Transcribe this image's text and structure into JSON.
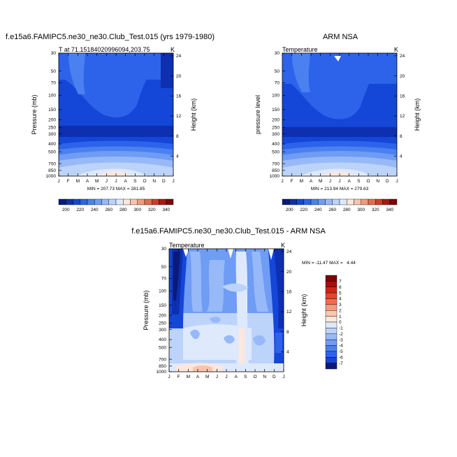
{
  "chart_data": [
    {
      "type": "heatmap",
      "title": "f.e15a6.FAMIPC5.ne30_ne30.Club_Test.015 (yrs 1979-1980)",
      "left_label": "T at 71.15184020996094,203.75",
      "right_label": "K",
      "ylabel": "Pressure (mb)",
      "ylabel_right": "Height (km)",
      "x_ticks": [
        "J",
        "F",
        "M",
        "A",
        "M",
        "J",
        "J",
        "A",
        "S",
        "O",
        "N",
        "D",
        "J"
      ],
      "y_ticks": [
        "30",
        "50",
        "70",
        "100",
        "150",
        "200",
        "250",
        "300",
        "400",
        "500",
        "700",
        "850",
        "1000"
      ],
      "y_values": [
        30,
        50,
        70,
        100,
        150,
        200,
        250,
        300,
        400,
        500,
        700,
        850,
        1000
      ],
      "height_ticks": [
        "4",
        "8",
        "12",
        "16",
        "20",
        "24"
      ],
      "height_values": [
        4,
        8,
        12,
        16,
        20,
        24
      ],
      "min_label": "MIN = 207.73",
      "max_label": "MAX = 281.85",
      "min": 207.73,
      "max": 281.85,
      "colorbar": "temp"
    },
    {
      "type": "heatmap",
      "title": "ARM NSA",
      "left_label": "Temperature",
      "right_label": "K",
      "ylabel": "pressure level",
      "ylabel_right": "Height (km)",
      "x_ticks": [
        "J",
        "F",
        "M",
        "A",
        "M",
        "J",
        "J",
        "A",
        "S",
        "O",
        "N",
        "D",
        "J"
      ],
      "y_ticks": [
        "30",
        "50",
        "70",
        "100",
        "150",
        "200",
        "250",
        "300",
        "400",
        "500",
        "700",
        "850",
        "1000"
      ],
      "y_values": [
        30,
        50,
        70,
        100,
        150,
        200,
        250,
        300,
        400,
        500,
        700,
        850,
        1000
      ],
      "height_ticks": [
        "4",
        "8",
        "12",
        "16",
        "20",
        "24"
      ],
      "height_values": [
        4,
        8,
        12,
        16,
        20,
        24
      ],
      "min_label": "MIN = 213.94",
      "max_label": "MAX = 279.63",
      "min": 213.94,
      "max": 279.63,
      "colorbar": "temp"
    },
    {
      "type": "heatmap",
      "title": "f.e15a6.FAMIPC5.ne30_ne30.Club_Test.015 - ARM NSA",
      "left_label": "Temperature",
      "right_label": "K",
      "ylabel": "Pressure (mb)",
      "ylabel_right": "Height (km)",
      "x_ticks": [
        "J",
        "F",
        "M",
        "A",
        "M",
        "J",
        "J",
        "A",
        "S",
        "O",
        "N",
        "D",
        "J"
      ],
      "y_ticks": [
        "30",
        "50",
        "70",
        "100",
        "150",
        "200",
        "250",
        "300",
        "400",
        "500",
        "700",
        "850",
        "1000"
      ],
      "y_values": [
        30,
        50,
        70,
        100,
        150,
        200,
        250,
        300,
        400,
        500,
        700,
        850,
        1000
      ],
      "height_ticks": [
        "4",
        "8",
        "12",
        "16",
        "20",
        "24"
      ],
      "height_values": [
        4,
        8,
        12,
        16,
        20,
        24
      ],
      "minmax_label": "MIN = -11.47 MAX =   4.44",
      "min": -11.47,
      "max": 4.44,
      "colorbar": "diff"
    }
  ],
  "colorbar_temp": {
    "labels": [
      "200",
      "220",
      "240",
      "260",
      "280",
      "300",
      "320",
      "340"
    ],
    "colors": [
      "#0a1a7a",
      "#0d2fb0",
      "#1446d8",
      "#2c63ea",
      "#4b80f0",
      "#6f9cf4",
      "#97b9f7",
      "#bcd3fa",
      "#dfe9fc",
      "#fde7dc",
      "#f9c3ac",
      "#f39a7c",
      "#e8694e",
      "#d43a2a",
      "#b01515",
      "#7a0606"
    ]
  },
  "colorbar_diff": {
    "labels": [
      "7",
      "6",
      "5",
      "4",
      "3",
      "2",
      "1",
      "0",
      "-1",
      "-2",
      "-3",
      "-4",
      "-5",
      "-6",
      "-7"
    ],
    "colors": [
      "#7a0606",
      "#a80c0c",
      "#cc2417",
      "#e2462d",
      "#ee6e4f",
      "#f59a7c",
      "#fbc7b0",
      "#fde7dc",
      "#dfe9fc",
      "#bcd3fa",
      "#97b9f7",
      "#6f9cf4",
      "#4b80f0",
      "#2c63ea",
      "#1446d8",
      "#0a1a7a"
    ]
  }
}
